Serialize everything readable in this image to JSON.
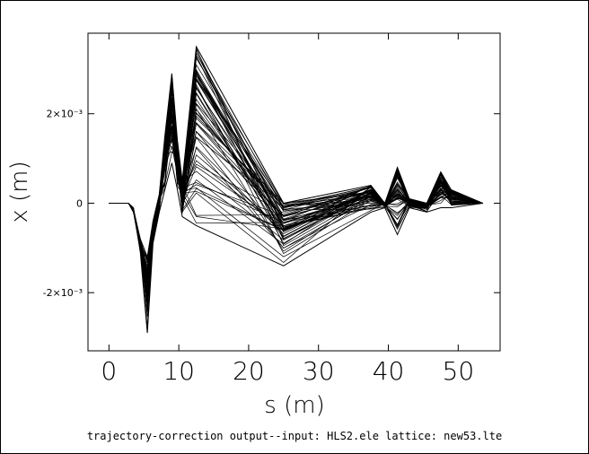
{
  "chart_data": {
    "type": "line",
    "xlabel": "s (m)",
    "ylabel": "x (m)",
    "caption": "trajectory-correction output--input: HLS2.ele   lattice: new53.lte",
    "xlim": [
      -3,
      56
    ],
    "ylim": [
      -0.0033,
      0.0038
    ],
    "x_ticks": [
      0,
      10,
      20,
      30,
      40,
      50
    ],
    "x_tick_labels": [
      "0",
      "10",
      "20",
      "30",
      "40",
      "50"
    ],
    "y_ticks": [
      -0.002,
      0,
      0.002
    ],
    "y_tick_labels": [
      "-2×10⁻³",
      "0",
      "2×10⁻³"
    ],
    "grid": false,
    "series_count": 60,
    "envelope": {
      "s": [
        0,
        2.8,
        3.5,
        4.5,
        5.5,
        6.3,
        7.2,
        8.0,
        9.0,
        9.8,
        10.5,
        12.5,
        25.0,
        37.5,
        39.5,
        41.3,
        43.0,
        45.5,
        47.5,
        49.0,
        53.5
      ],
      "x_max": [
        0,
        0,
        -0.0002,
        -0.0008,
        -0.0012,
        -0.0004,
        0.0002,
        0.0015,
        0.0029,
        0.0014,
        0.0005,
        0.0035,
        0.0,
        0.0004,
        0.0,
        0.0008,
        0.0001,
        0.0,
        0.0007,
        0.0003,
        0.0
      ],
      "x_min": [
        0,
        0,
        -0.0001,
        -0.0011,
        -0.0029,
        -0.0009,
        -0.0002,
        0.0003,
        0.0009,
        0.0003,
        -0.0003,
        -0.0005,
        -0.0014,
        -0.0002,
        -0.0001,
        -0.0007,
        -0.0001,
        -0.0002,
        -0.0001,
        -0.0001,
        0.0
      ]
    }
  }
}
